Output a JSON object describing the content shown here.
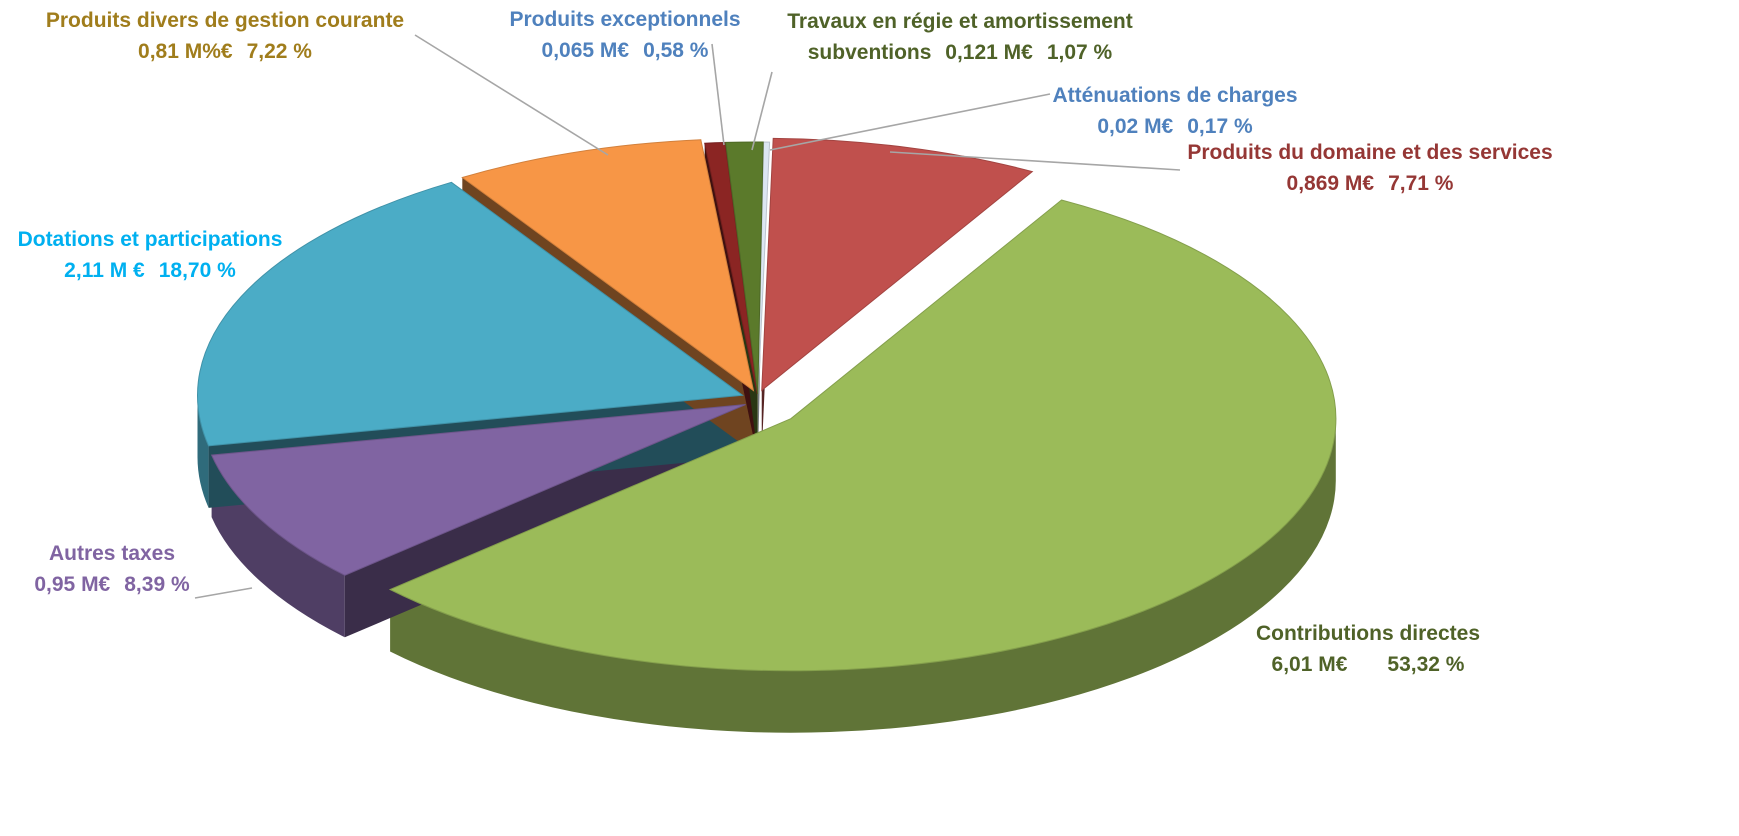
{
  "chart_data": {
    "type": "pie3d",
    "labels": [
      "Atténuations de charges",
      "Produits du domaine et des services",
      "Contributions directes",
      "Autres taxes",
      "Dotations et participations",
      "Produits divers de gestion courante",
      "Produits exceptionnels",
      "Travaux en régie et amortissement subventions"
    ],
    "values": [
      0.17,
      7.71,
      53.32,
      8.39,
      18.7,
      7.22,
      0.58,
      1.07
    ],
    "value_labels": [
      "0,17  %",
      "7,71 %",
      "53,32 %",
      "8,39 %",
      "18,70 %",
      "7,22 %",
      "0,58 %",
      "1,07 %"
    ],
    "amount_labels": [
      "0,02 M€",
      "0,869 M€",
      "6,01 M€",
      "0,95 M€",
      "2,11 M €",
      "0,81 M%€",
      "0,065 M€",
      "0,121 M€"
    ],
    "colors": [
      "#dce6f2",
      "#c0504d",
      "#9bbb59",
      "#8064a2",
      "#4bacc6",
      "#f79646",
      "#8b2523",
      "#5b7a2b"
    ]
  }
}
